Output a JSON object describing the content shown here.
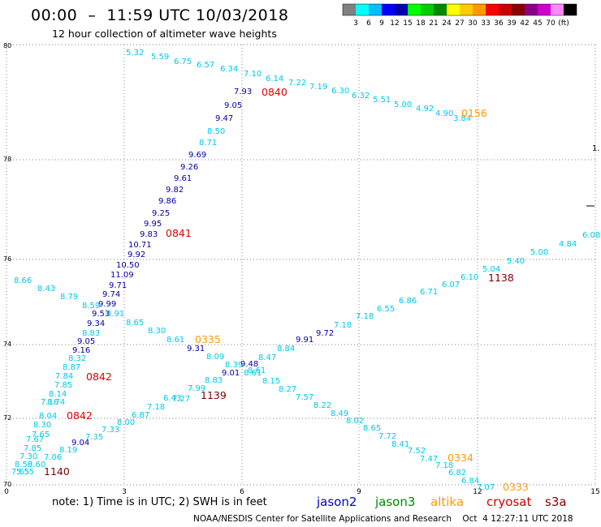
{
  "header": {
    "title": "00:00  –  11:59 UTC 10/03/2018",
    "subtitle": "12 hour collection of altimeter wave heights"
  },
  "colorbar": {
    "colors": [
      "#808080",
      "#00ffff",
      "#00bfff",
      "#0000ff",
      "#0000aa",
      "#00ff00",
      "#00cc00",
      "#008800",
      "#ffff00",
      "#ffcc00",
      "#ff9900",
      "#ff0000",
      "#cc0000",
      "#880000",
      "#880088",
      "#cc00cc",
      "#ff88ff",
      "#000000"
    ],
    "labels": [
      "3",
      "6",
      "9",
      "12",
      "15",
      "18",
      "21",
      "24",
      "27",
      "30",
      "33",
      "36",
      "39",
      "42",
      "45",
      "70",
      "(ft)"
    ]
  },
  "axes": {
    "x_ticks": [
      "0",
      "3",
      "6",
      "9",
      "12",
      "15"
    ],
    "y_ticks": [
      "80",
      "78",
      "76",
      "74",
      "72",
      "70"
    ]
  },
  "legend": {
    "items": [
      {
        "label": "jason2",
        "color": "#0000cc"
      },
      {
        "label": "jason3",
        "color": "#008800"
      },
      {
        "label": "altika",
        "color": "#ff9900"
      },
      {
        "label": "cryosat",
        "color": "#cc0000"
      },
      {
        "label": "s3a",
        "color": "#880000"
      }
    ]
  },
  "footer": {
    "note": "note:  1) Time is in UTC;  2) SWH is in feet",
    "credit": "NOAA/NESDIS Center for Satellite Applications and Research    Oct  4 12:27:11 UTC 2018"
  },
  "colors": {
    "cyan": "#00c8e8",
    "blue": "#0000aa",
    "red": "#e00000",
    "orange": "#ff9900",
    "maroon": "#800000"
  },
  "map_data": {
    "points": [
      {
        "t": "5.32",
        "c": "cyan"
      },
      {
        "t": "5.59",
        "c": "cyan"
      },
      {
        "t": "6.75",
        "c": "cyan"
      },
      {
        "t": "6.57",
        "c": "cyan"
      },
      {
        "t": "6.34",
        "c": "cyan"
      },
      {
        "t": "7.10",
        "c": "cyan"
      },
      {
        "t": "6.14",
        "c": "cyan"
      },
      {
        "t": "7.22",
        "c": "cyan"
      },
      {
        "t": "7.19",
        "c": "cyan"
      },
      {
        "t": "6.30",
        "c": "cyan"
      },
      {
        "t": "6.32",
        "c": "cyan"
      },
      {
        "t": "5.51",
        "c": "cyan"
      },
      {
        "t": "5.00",
        "c": "cyan"
      },
      {
        "t": "4.92",
        "c": "cyan"
      },
      {
        "t": "4.90",
        "c": "cyan"
      },
      {
        "t": "3.84",
        "c": "cyan"
      },
      {
        "t": "0156",
        "c": "orange"
      },
      {
        "t": "7.93",
        "c": "blue"
      },
      {
        "t": "0840",
        "c": "red"
      },
      {
        "t": "9.05",
        "c": "blue"
      },
      {
        "t": "9.47",
        "c": "blue"
      },
      {
        "t": "8.50",
        "c": "cyan"
      },
      {
        "t": "8.71",
        "c": "cyan"
      },
      {
        "t": "9.69",
        "c": "blue"
      },
      {
        "t": "9.26",
        "c": "blue"
      },
      {
        "t": "9.61",
        "c": "blue"
      },
      {
        "t": "9.82",
        "c": "blue"
      },
      {
        "t": "9.86",
        "c": "blue"
      },
      {
        "t": "9.25",
        "c": "blue"
      },
      {
        "t": "9.95",
        "c": "blue"
      },
      {
        "t": "9.83",
        "c": "blue"
      },
      {
        "t": "0841",
        "c": "red"
      },
      {
        "t": "9.92",
        "c": "blue"
      },
      {
        "t": "10.71",
        "c": "blue"
      },
      {
        "t": "10.50",
        "c": "blue"
      },
      {
        "t": "11.09",
        "c": "blue"
      },
      {
        "t": "9.71",
        "c": "blue"
      },
      {
        "t": "9.74",
        "c": "blue"
      },
      {
        "t": "9.99",
        "c": "blue"
      },
      {
        "t": "9.53",
        "c": "blue"
      },
      {
        "t": "8.91",
        "c": "cyan"
      },
      {
        "t": "9.34",
        "c": "blue"
      },
      {
        "t": "8.83",
        "c": "cyan"
      },
      {
        "t": "9.05",
        "c": "blue"
      },
      {
        "t": "9.16",
        "c": "blue"
      },
      {
        "t": "8.66",
        "c": "cyan"
      },
      {
        "t": "8.43",
        "c": "cyan"
      },
      {
        "t": "8.79",
        "c": "cyan"
      },
      {
        "t": "8.59",
        "c": "cyan"
      },
      {
        "t": "8.65",
        "c": "cyan"
      },
      {
        "t": "8.30",
        "c": "cyan"
      },
      {
        "t": "8.61",
        "c": "cyan"
      },
      {
        "t": "0335",
        "c": "orange"
      },
      {
        "t": "9.31",
        "c": "blue"
      },
      {
        "t": "8.09",
        "c": "cyan"
      },
      {
        "t": "8.39",
        "c": "cyan"
      },
      {
        "t": "9.48",
        "c": "blue"
      },
      {
        "t": "9.01",
        "c": "blue"
      },
      {
        "t": "8.61",
        "c": "cyan"
      },
      {
        "t": "8.15",
        "c": "cyan"
      },
      {
        "t": "8.27",
        "c": "cyan"
      },
      {
        "t": "7.57",
        "c": "cyan"
      },
      {
        "t": "8.22",
        "c": "cyan"
      },
      {
        "t": "8.49",
        "c": "cyan"
      },
      {
        "t": "8.02",
        "c": "cyan"
      },
      {
        "t": "8.65",
        "c": "cyan"
      },
      {
        "t": "7.72",
        "c": "cyan"
      },
      {
        "t": "8.41",
        "c": "cyan"
      },
      {
        "t": "7.52",
        "c": "cyan"
      },
      {
        "t": "7.47",
        "c": "cyan"
      },
      {
        "t": "0334",
        "c": "orange"
      },
      {
        "t": "7.18",
        "c": "cyan"
      },
      {
        "t": "6.82",
        "c": "cyan"
      },
      {
        "t": "6.84",
        "c": "cyan"
      },
      {
        "t": "7.07",
        "c": "cyan"
      },
      {
        "t": "0333",
        "c": "orange"
      },
      {
        "t": "6.08",
        "c": "cyan"
      },
      {
        "t": "4.84",
        "c": "cyan"
      },
      {
        "t": "5.00",
        "c": "cyan"
      },
      {
        "t": "5.40",
        "c": "cyan"
      },
      {
        "t": "5.04",
        "c": "cyan"
      },
      {
        "t": "6.10",
        "c": "cyan"
      },
      {
        "t": "1138",
        "c": "maroon"
      },
      {
        "t": "6.07",
        "c": "cyan"
      },
      {
        "t": "6.71",
        "c": "cyan"
      },
      {
        "t": "6.86",
        "c": "cyan"
      },
      {
        "t": "6.55",
        "c": "cyan"
      },
      {
        "t": "7.18",
        "c": "cyan"
      },
      {
        "t": "7.18",
        "c": "cyan"
      },
      {
        "t": "9.72",
        "c": "blue"
      },
      {
        "t": "9.91",
        "c": "blue"
      },
      {
        "t": "8.84",
        "c": "cyan"
      },
      {
        "t": "8.47",
        "c": "cyan"
      },
      {
        "t": "8.61",
        "c": "cyan"
      },
      {
        "t": "8.83",
        "c": "cyan"
      },
      {
        "t": "7.99",
        "c": "cyan"
      },
      {
        "t": "1139",
        "c": "maroon"
      },
      {
        "t": "7.27",
        "c": "cyan"
      },
      {
        "t": "6.43",
        "c": "cyan"
      },
      {
        "t": "7.18",
        "c": "cyan"
      },
      {
        "t": "6.87",
        "c": "cyan"
      },
      {
        "t": "8.00",
        "c": "cyan"
      },
      {
        "t": "7.33",
        "c": "cyan"
      },
      {
        "t": "7.35",
        "c": "cyan"
      },
      {
        "t": "9.04",
        "c": "blue"
      },
      {
        "t": "8.19",
        "c": "cyan"
      },
      {
        "t": "7.06",
        "c": "cyan"
      },
      {
        "t": "8.32",
        "c": "cyan"
      },
      {
        "t": "8.87",
        "c": "cyan"
      },
      {
        "t": "0842",
        "c": "red"
      },
      {
        "t": "7.84",
        "c": "cyan"
      },
      {
        "t": "7.85",
        "c": "cyan"
      },
      {
        "t": "8.14",
        "c": "cyan"
      },
      {
        "t": "7.16",
        "c": "cyan"
      },
      {
        "t": "8.74",
        "c": "cyan"
      },
      {
        "t": "8.04",
        "c": "cyan"
      },
      {
        "t": "0842",
        "c": "red"
      },
      {
        "t": "8.30",
        "c": "cyan"
      },
      {
        "t": "7.65",
        "c": "cyan"
      },
      {
        "t": "7.67",
        "c": "cyan"
      },
      {
        "t": "7.85",
        "c": "cyan"
      },
      {
        "t": "7.30",
        "c": "cyan"
      },
      {
        "t": "8.58",
        "c": "cyan"
      },
      {
        "t": "8.60",
        "c": "cyan"
      },
      {
        "t": "7.65",
        "c": "cyan"
      },
      {
        "t": "5.55",
        "c": "cyan"
      },
      {
        "t": "1140",
        "c": "maroon"
      }
    ],
    "side_marks": [
      "1."
    ]
  }
}
